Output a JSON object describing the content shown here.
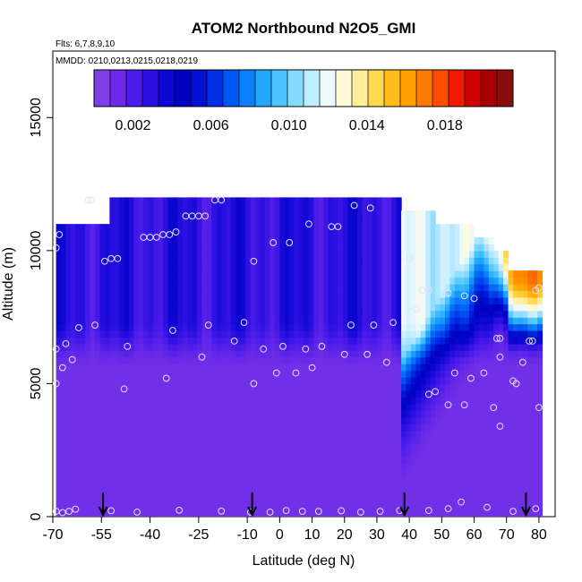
{
  "chart_data": {
    "type": "heatmap",
    "title": "ATOM2 Northbound N2O5_GMI",
    "flights_label": "Flts: 6,7,8,9,10",
    "dates_label": "MMDD: 0210,0213,0215,0218,0219",
    "xlabel": "Latitude (deg N)",
    "ylabel": "Altitude (m)",
    "xlim": [
      -70,
      85
    ],
    "ylim": [
      0,
      17500
    ],
    "x_ticks": [
      -70,
      -55,
      -40,
      -25,
      -10,
      0,
      10,
      20,
      30,
      40,
      50,
      60,
      70,
      80
    ],
    "y_ticks": [
      0,
      5000,
      10000,
      15000
    ],
    "colorbar": {
      "range": [
        0,
        0.0215
      ],
      "ticks": [
        0.002,
        0.006,
        0.01,
        0.014,
        0.018
      ],
      "tick_labels": [
        "0.002",
        "0.006",
        "0.010",
        "0.014",
        "0.018"
      ],
      "colors": [
        "#7f3fe6",
        "#6a2ae8",
        "#4b1bea",
        "#2a10e0",
        "#0d07d4",
        "#0000c0",
        "#0010d0",
        "#0030e6",
        "#0058f2",
        "#0a80fa",
        "#20a8ff",
        "#4cc4ff",
        "#86daff",
        "#bfecff",
        "#eef8ff",
        "#fffbd8",
        "#ffef99",
        "#ffd850",
        "#ffbd1c",
        "#ffa000",
        "#ff7a00",
        "#ff4c00",
        "#f01a00",
        "#d00000",
        "#a80000",
        "#8a0d0d"
      ]
    },
    "series": [
      {
        "name": "flight track",
        "points": [
          [
            -69,
            200
          ],
          [
            -67,
            150
          ],
          [
            -65,
            200
          ],
          [
            -63,
            280
          ],
          [
            -52,
            220
          ],
          [
            -44,
            170
          ],
          [
            -31,
            240
          ],
          [
            -18,
            210
          ],
          [
            -9,
            170
          ],
          [
            -3,
            170
          ],
          [
            2,
            230
          ],
          [
            7,
            200
          ],
          [
            12,
            200
          ],
          [
            19,
            220
          ],
          [
            25,
            170
          ],
          [
            31,
            200
          ],
          [
            37,
            230
          ],
          [
            46,
            230
          ],
          [
            52,
            300
          ],
          [
            56,
            550
          ],
          [
            64,
            350
          ],
          [
            72,
            200
          ],
          [
            79,
            300
          ],
          [
            -69,
            5000
          ],
          [
            -69,
            6300
          ],
          [
            -67,
            5600
          ],
          [
            -66,
            6500
          ],
          [
            -64,
            5900
          ],
          [
            -62,
            7100
          ],
          [
            -57,
            7200
          ],
          [
            -48,
            4800
          ],
          [
            -47,
            6400
          ],
          [
            -35,
            5200
          ],
          [
            -33,
            7000
          ],
          [
            -24,
            6000
          ],
          [
            -22,
            7200
          ],
          [
            -14,
            6600
          ],
          [
            -11,
            7300
          ],
          [
            -8,
            5000
          ],
          [
            -5,
            6300
          ],
          [
            -1,
            5400
          ],
          [
            1,
            6400
          ],
          [
            5,
            5400
          ],
          [
            8,
            6300
          ],
          [
            10,
            5600
          ],
          [
            13,
            6400
          ],
          [
            20,
            6100
          ],
          [
            22,
            7200
          ],
          [
            27,
            6100
          ],
          [
            29,
            7200
          ],
          [
            33,
            5800
          ],
          [
            35,
            7300
          ],
          [
            46,
            4600
          ],
          [
            48,
            4700
          ],
          [
            52,
            4200
          ],
          [
            54,
            5400
          ],
          [
            57,
            4200
          ],
          [
            59,
            5200
          ],
          [
            63,
            5400
          ],
          [
            66,
            4100
          ],
          [
            67,
            6700
          ],
          [
            68,
            6000
          ],
          [
            68,
            6700
          ],
          [
            68,
            3400
          ],
          [
            72,
            5100
          ],
          [
            73,
            5000
          ],
          [
            75,
            5800
          ],
          [
            77,
            6600
          ],
          [
            80,
            4100
          ],
          [
            -69,
            10100
          ],
          [
            -68,
            10600
          ],
          [
            -54,
            9600
          ],
          [
            -52,
            9700
          ],
          [
            -50,
            9700
          ],
          [
            -42,
            10500
          ],
          [
            -40,
            10500
          ],
          [
            -38,
            10500
          ],
          [
            -36,
            10600
          ],
          [
            -34,
            10600
          ],
          [
            -32,
            10700
          ],
          [
            -29,
            11300
          ],
          [
            -27,
            11300
          ],
          [
            -25,
            11300
          ],
          [
            -23,
            11300
          ],
          [
            -20,
            11900
          ],
          [
            -18,
            11900
          ],
          [
            -8,
            9600
          ],
          [
            -2,
            10300
          ],
          [
            3,
            10300
          ],
          [
            9,
            11000
          ],
          [
            16,
            10900
          ],
          [
            18,
            10900
          ],
          [
            23,
            11700
          ],
          [
            28,
            11600
          ],
          [
            40,
            9700
          ],
          [
            42,
            7800
          ],
          [
            44,
            8500
          ],
          [
            46,
            8500
          ],
          [
            52,
            8400
          ],
          [
            57,
            8300
          ],
          [
            60,
            8200
          ],
          [
            78,
            6600
          ],
          [
            79,
            8500
          ],
          [
            80,
            8600
          ],
          [
            -59,
            11900
          ],
          [
            -58,
            11900
          ]
        ]
      }
    ],
    "arrows_latitude": [
      -54.5,
      -8.5,
      38.5,
      76
    ]
  }
}
